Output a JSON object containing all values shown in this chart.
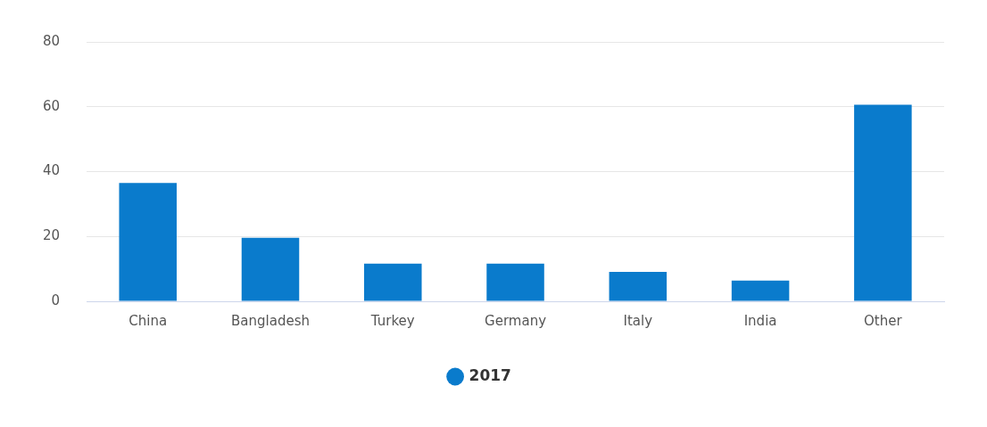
{
  "chart_data": {
    "type": "bar",
    "categories": [
      "China",
      "Bangladesh",
      "Turkey",
      "Germany",
      "Italy",
      "India",
      "Other"
    ],
    "series": [
      {
        "name": "2017",
        "color": "#0a7bcc",
        "values": [
          36.5,
          19.6,
          11.6,
          11.6,
          9.1,
          6.4,
          60.6
        ]
      }
    ],
    "ylim": [
      0,
      80
    ],
    "yticks": [
      0,
      20,
      40,
      60,
      80
    ],
    "grid": "y",
    "legend": "bottom"
  }
}
